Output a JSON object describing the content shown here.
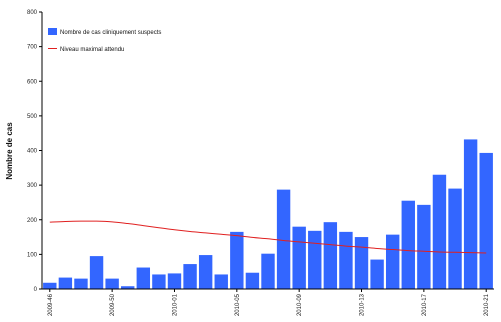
{
  "chart_data": {
    "type": "bar",
    "title": "",
    "xlabel": "",
    "ylabel": "Nombre de cas",
    "ylim": [
      0,
      800
    ],
    "yticks": [
      0,
      100,
      200,
      300,
      400,
      500,
      600,
      700,
      800
    ],
    "grid": false,
    "legend_position": "top-left",
    "categories": [
      "2009-46",
      "2009-47",
      "2009-48",
      "2009-49",
      "2009-50",
      "2009-51",
      "2009-52",
      "2009-53",
      "2010-01",
      "2010-02",
      "2010-03",
      "2010-04",
      "2010-05",
      "2010-06",
      "2010-07",
      "2010-08",
      "2010-09",
      "2010-10",
      "2010-11",
      "2010-12",
      "2010-13",
      "2010-14",
      "2010-15",
      "2010-16",
      "2010-17",
      "2010-18",
      "2010-19",
      "2010-20",
      "2010-21"
    ],
    "tick_labels": [
      {
        "index": 0,
        "label": "2009-46"
      },
      {
        "index": 4,
        "label": "2009-50"
      },
      {
        "index": 8,
        "label": "2010-01"
      },
      {
        "index": 12,
        "label": "2010-05"
      },
      {
        "index": 16,
        "label": "2010-09"
      },
      {
        "index": 20,
        "label": "2010-13"
      },
      {
        "index": 24,
        "label": "2010-17"
      },
      {
        "index": 28,
        "label": "2010-21"
      }
    ],
    "series": [
      {
        "name": "Nombre de cas cliniquement suspects",
        "kind": "bar",
        "color": "#3366ff",
        "values": [
          18,
          33,
          30,
          95,
          30,
          8,
          62,
          42,
          45,
          72,
          98,
          42,
          165,
          47,
          102,
          287,
          180,
          168,
          193,
          165,
          150,
          85,
          157,
          255,
          243,
          330,
          290,
          432,
          393
        ]
      },
      {
        "name": "Niveau maximal attendu",
        "kind": "line",
        "color": "#e02020",
        "values": [
          193,
          195,
          196,
          196,
          194,
          189,
          183,
          177,
          171,
          166,
          162,
          158,
          154,
          149,
          145,
          140,
          136,
          132,
          128,
          124,
          121,
          117,
          114,
          111,
          109,
          107,
          106,
          105,
          104
        ]
      }
    ]
  }
}
